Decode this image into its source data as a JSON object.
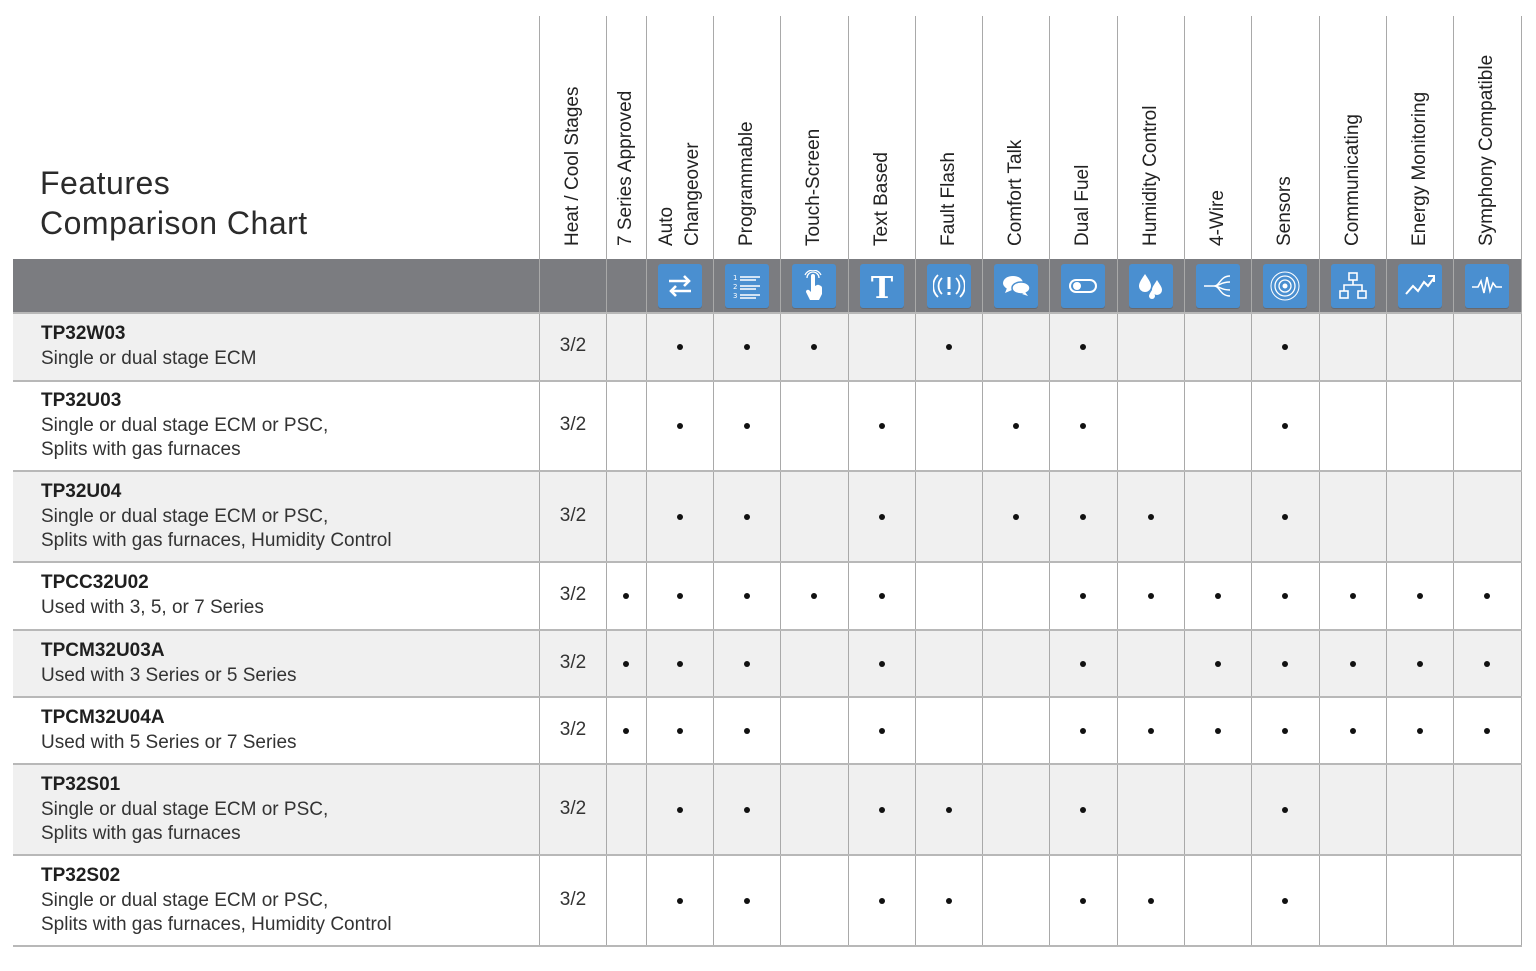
{
  "title": {
    "line1": "Features",
    "line2": "Comparison Chart"
  },
  "columns": [
    {
      "key": "stages",
      "label": "Heat / Cool Stages",
      "icon": ""
    },
    {
      "key": "series7",
      "label": "7 Series Approved",
      "icon": ""
    },
    {
      "key": "auto",
      "label": "Auto\nChangeover",
      "icon": "auto-changeover-icon"
    },
    {
      "key": "prog",
      "label": "Programmable",
      "icon": "programmable-list-icon"
    },
    {
      "key": "touch",
      "label": "Touch-Screen",
      "icon": "touch-screen-icon"
    },
    {
      "key": "text",
      "label": "Text Based",
      "icon": "text-based-icon"
    },
    {
      "key": "fault",
      "label": "Fault Flash",
      "icon": "fault-flash-icon"
    },
    {
      "key": "comfort",
      "label": "Comfort Talk",
      "icon": "comfort-talk-icon"
    },
    {
      "key": "dual",
      "label": "Dual Fuel",
      "icon": "dual-fuel-icon"
    },
    {
      "key": "humid",
      "label": "Humidity Control",
      "icon": "humidity-control-icon"
    },
    {
      "key": "wire",
      "label": "4-Wire",
      "icon": "four-wire-icon"
    },
    {
      "key": "sensors",
      "label": "Sensors",
      "icon": "sensors-icon"
    },
    {
      "key": "comm",
      "label": "Communicating",
      "icon": "communicating-icon"
    },
    {
      "key": "energy",
      "label": "Energy Monitoring",
      "icon": "energy-monitoring-icon"
    },
    {
      "key": "symph",
      "label": "Symphony Compatible",
      "icon": "symphony-compatible-icon"
    }
  ],
  "rows": [
    {
      "model": "TP32W03",
      "desc": "Single or dual stage ECM",
      "stages": "3/2",
      "features": [
        false,
        true,
        true,
        true,
        false,
        true,
        false,
        true,
        false,
        false,
        true,
        false,
        false,
        false
      ]
    },
    {
      "model": "TP32U03",
      "desc": "Single or dual stage ECM or PSC,\nSplits with gas furnaces",
      "stages": "3/2",
      "features": [
        false,
        true,
        true,
        false,
        true,
        false,
        true,
        true,
        false,
        false,
        true,
        false,
        false,
        false
      ]
    },
    {
      "model": "TP32U04",
      "desc": "Single or dual stage ECM or PSC,\nSplits with gas furnaces, Humidity Control",
      "stages": "3/2",
      "features": [
        false,
        true,
        true,
        false,
        true,
        false,
        true,
        true,
        true,
        false,
        true,
        false,
        false,
        false
      ]
    },
    {
      "model": "TPCC32U02",
      "desc": "Used with 3, 5, or 7 Series",
      "stages": "3/2",
      "features": [
        true,
        true,
        true,
        true,
        true,
        false,
        false,
        true,
        true,
        true,
        true,
        true,
        true,
        true
      ]
    },
    {
      "model": "TPCM32U03A",
      "desc": "Used with 3 Series or 5 Series",
      "stages": "3/2",
      "features": [
        true,
        true,
        true,
        false,
        true,
        false,
        false,
        true,
        false,
        true,
        true,
        true,
        true,
        true
      ]
    },
    {
      "model": "TPCM32U04A",
      "desc": "Used with 5 Series or 7 Series",
      "stages": "3/2",
      "features": [
        true,
        true,
        true,
        false,
        true,
        false,
        false,
        true,
        true,
        true,
        true,
        true,
        true,
        true
      ]
    },
    {
      "model": "TP32S01",
      "desc": "Single or dual stage ECM or PSC,\nSplits with gas furnaces",
      "stages": "3/2",
      "features": [
        false,
        true,
        true,
        false,
        true,
        true,
        false,
        true,
        false,
        false,
        true,
        false,
        false,
        false
      ]
    },
    {
      "model": "TP32S02",
      "desc": "Single or dual stage ECM or PSC,\nSplits with gas furnaces, Humidity Control",
      "stages": "3/2",
      "features": [
        false,
        true,
        true,
        false,
        true,
        true,
        false,
        true,
        true,
        false,
        true,
        false,
        false,
        false
      ]
    }
  ]
}
